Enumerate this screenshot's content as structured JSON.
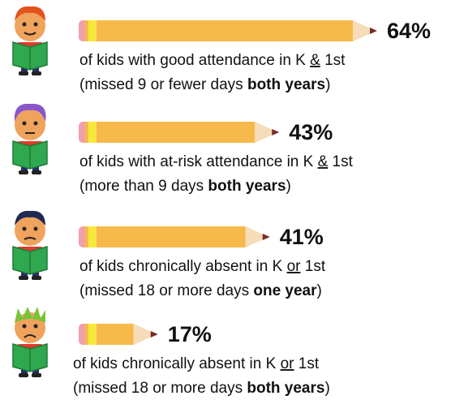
{
  "chart_data": {
    "type": "pencil-bar",
    "values": [
      64,
      43,
      41,
      17
    ],
    "value_labels": [
      "64%",
      "43%",
      "41%",
      "17%"
    ],
    "color": "#f7b94c",
    "descriptions": [
      [
        [
          "of kids with good attendance in K ",
          "&",
          " 1st"
        ],
        [
          "(missed 9 or fewer days ",
          "both years",
          ")"
        ]
      ],
      [
        [
          "of kids with at-risk attendance in K ",
          "&",
          " 1st"
        ],
        [
          "(more than 9 days ",
          "both years",
          ")"
        ]
      ],
      [
        [
          "of kids chronically absent in K ",
          "or",
          " 1st"
        ],
        [
          "(missed 18 or more days ",
          "one year",
          ")"
        ]
      ],
      [
        [
          "of kids chronically absent in K ",
          "or",
          " 1st"
        ],
        [
          "(missed 18 or more days ",
          "both years",
          ")"
        ]
      ]
    ]
  }
}
